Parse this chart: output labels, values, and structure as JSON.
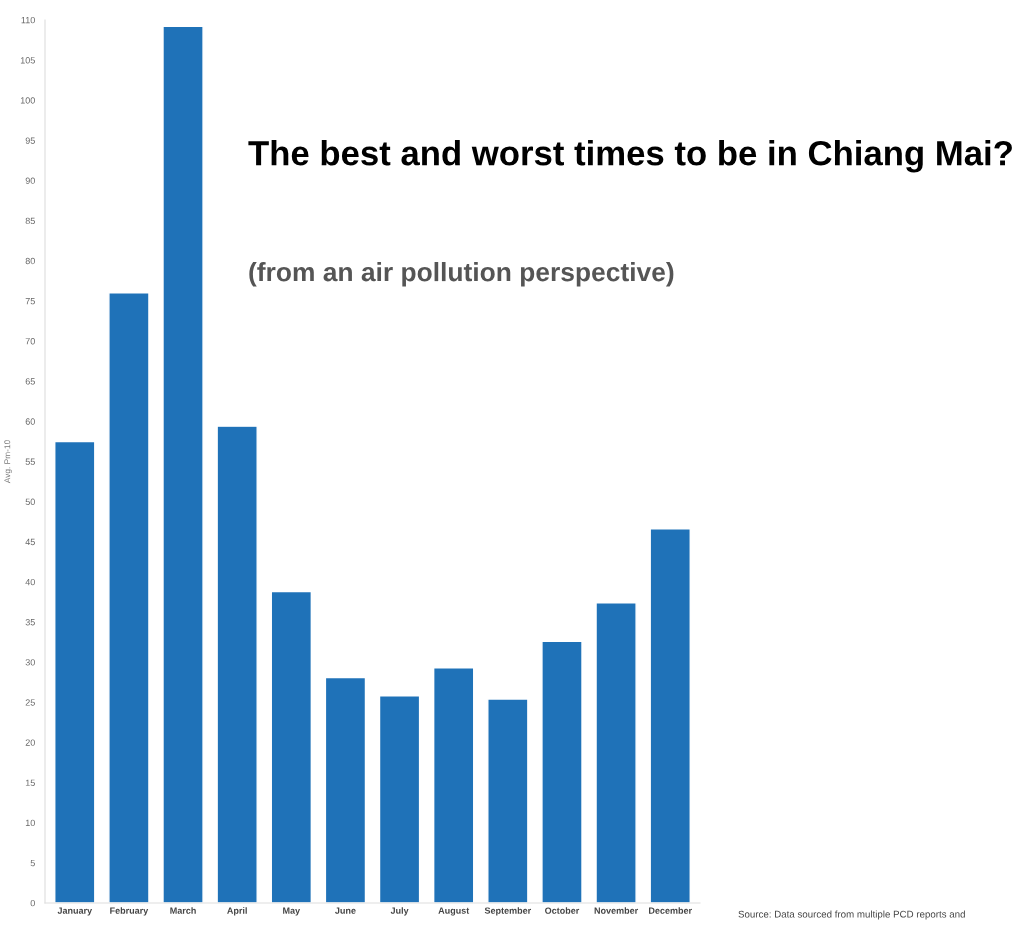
{
  "chart_data": {
    "type": "bar",
    "title": "The best and worst times to be in Chiang Mai?",
    "subtitle": "(from an air pollution perspective)",
    "ylabel": "Avg. Pm-10",
    "categories": [
      "January",
      "February",
      "March",
      "April",
      "May",
      "June",
      "July",
      "August",
      "September",
      "October",
      "November",
      "December"
    ],
    "values": [
      57.5,
      76,
      109.2,
      59.4,
      38.8,
      28.1,
      25.8,
      29.3,
      25.4,
      32.6,
      37.4,
      46.6
    ],
    "color": "#1f72b8",
    "ylim": [
      0,
      110
    ],
    "yticks": [
      0,
      5,
      10,
      15,
      20,
      25,
      30,
      35,
      40,
      45,
      50,
      55,
      60,
      65,
      70,
      75,
      80,
      85,
      90,
      95,
      100,
      105,
      110
    ],
    "grid": false,
    "annotations": [
      "Source: Data sourced from multiple PCD reports and"
    ]
  }
}
